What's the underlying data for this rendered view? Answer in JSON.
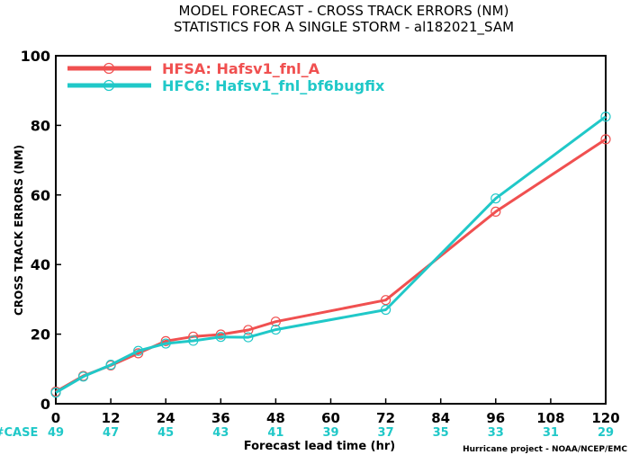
{
  "chart_data": {
    "type": "line",
    "title": "MODEL FORECAST - CROSS TRACK ERRORS (NM)",
    "subtitle": "STATISTICS FOR A SINGLE STORM - al182021_SAM",
    "xlabel": "Forecast lead time (hr)",
    "ylabel": "CROSS TRACK ERRORS (NM)",
    "xlim": [
      0,
      120
    ],
    "ylim": [
      0,
      100
    ],
    "xticks": [
      0,
      12,
      24,
      36,
      48,
      60,
      72,
      84,
      96,
      108,
      120
    ],
    "yticks": [
      0,
      20,
      40,
      60,
      80,
      100
    ],
    "legend_placement": "top-left",
    "grid": false,
    "case_label": "#CASE",
    "cases": [
      {
        "x": 0,
        "n": "49"
      },
      {
        "x": 12,
        "n": "47"
      },
      {
        "x": 24,
        "n": "45"
      },
      {
        "x": 36,
        "n": "43"
      },
      {
        "x": 48,
        "n": "41"
      },
      {
        "x": 60,
        "n": "39"
      },
      {
        "x": 72,
        "n": "37"
      },
      {
        "x": 84,
        "n": "35"
      },
      {
        "x": 96,
        "n": "33"
      },
      {
        "x": 108,
        "n": "31"
      },
      {
        "x": 120,
        "n": "29"
      }
    ],
    "series": [
      {
        "name": "HFSA: Hafsv1_fnl_A",
        "color": "#f05050",
        "points": [
          [
            0,
            3.5
          ],
          [
            6,
            8.0
          ],
          [
            12,
            11.0
          ],
          [
            18,
            14.5
          ],
          [
            24,
            18.0
          ],
          [
            30,
            19.3
          ],
          [
            36,
            19.9
          ],
          [
            42,
            21.2
          ],
          [
            48,
            23.6
          ],
          [
            72,
            29.8
          ],
          [
            96,
            55.2
          ],
          [
            120,
            76.0
          ]
        ]
      },
      {
        "name": "HFC6: Hafsv1_fnl_bf6bugfix",
        "color": "#20c8c8",
        "points": [
          [
            0,
            3.2
          ],
          [
            6,
            7.8
          ],
          [
            12,
            11.2
          ],
          [
            18,
            15.2
          ],
          [
            24,
            17.3
          ],
          [
            30,
            18.1
          ],
          [
            36,
            19.2
          ],
          [
            42,
            19.1
          ],
          [
            48,
            21.3
          ],
          [
            72,
            27.0
          ],
          [
            96,
            59.0
          ],
          [
            120,
            82.5
          ]
        ]
      }
    ]
  },
  "credit": "Hurricane project - NOAA/NCEP/EMC"
}
